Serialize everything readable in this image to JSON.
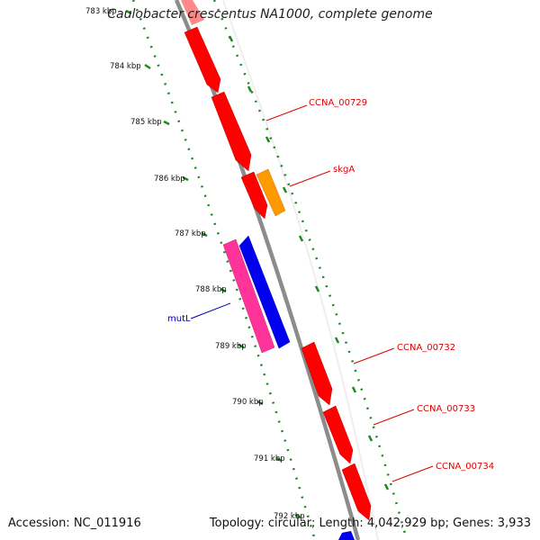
{
  "title": "Caulobacter crescentus NA1000, complete genome",
  "footer": {
    "accession": "Accession: NC_011916",
    "summary": "Topology: circular; Length: 4,042,929 bp; Genes: 3,933"
  },
  "ticks": [
    "783 kbp",
    "784 kbp",
    "785 kbp",
    "786 kbp",
    "787 kbp",
    "788 kbp",
    "789 kbp",
    "790 kbp",
    "791 kbp",
    "792 kbp"
  ],
  "gene_labels": [
    {
      "text": "CCNA_00729",
      "color": "#dd0000"
    },
    {
      "text": "skgA",
      "color": "#dd0000"
    },
    {
      "text": "mutL",
      "color": "#0000aa"
    },
    {
      "text": "CCNA_00732",
      "color": "#dd0000"
    },
    {
      "text": "CCNA_00733",
      "color": "#dd0000"
    },
    {
      "text": "CCNA_00734",
      "color": "#dd0000"
    }
  ],
  "colors": {
    "backbone": "#8c8c8c",
    "gene_red": "#ff0000",
    "gene_orange": "#ff9900",
    "gene_blue": "#0000ee",
    "gene_pink": "#ff3399",
    "dots": "#1a8a1a"
  }
}
